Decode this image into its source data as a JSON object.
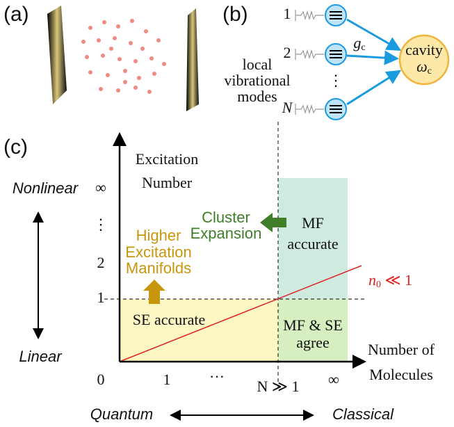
{
  "panels": {
    "a": {
      "label": "(a)"
    },
    "b": {
      "label": "(b)",
      "modes": [
        "1",
        "2",
        "⋮",
        "N"
      ],
      "modes_caption": [
        "local",
        "vibrational",
        "modes"
      ],
      "coupling": {
        "symbol": "g",
        "subscript": "c"
      },
      "cavity": {
        "name": "cavity",
        "symbol": "ω",
        "subscript": "c"
      }
    },
    "c": {
      "label": "(c)",
      "y_axis_title": [
        "Excitation",
        "Number"
      ],
      "x_axis_title": [
        "Number of",
        "Molecules"
      ],
      "y_ticks": [
        "∞",
        "⋮",
        "2",
        "1"
      ],
      "x_ticks": [
        "0",
        "1",
        "···",
        "N ≫ 1",
        "∞"
      ],
      "left_scale": {
        "top": "Nonlinear",
        "bottom": "Linear"
      },
      "bottom_scale": {
        "left": "Quantum",
        "right": "Classical"
      },
      "regions": {
        "se": "SE accurate",
        "mf": [
          "MF",
          "accurate"
        ],
        "agree": [
          "MF & SE",
          "agree"
        ]
      },
      "cluster": [
        "Cluster",
        "Expansion"
      ],
      "higher": [
        "Higher",
        "Excitation",
        "Manifolds"
      ],
      "line_label": {
        "symbol": "n",
        "subscript": "0",
        "rest": " ≪ 1"
      }
    }
  }
}
